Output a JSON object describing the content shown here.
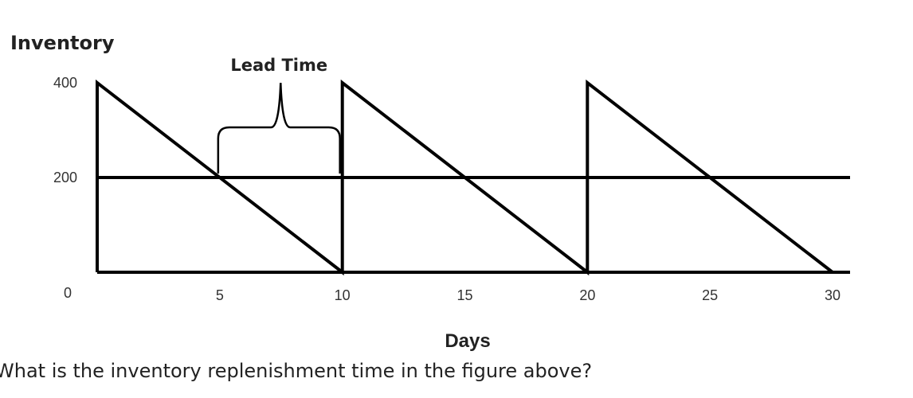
{
  "chart_data": {
    "type": "line",
    "ylabel": "Inventory",
    "xlabel": "Days",
    "x_ticks": [
      5,
      10,
      15,
      20,
      25,
      30
    ],
    "y_ticks": [
      400,
      200,
      0
    ],
    "xlim": [
      0,
      30
    ],
    "ylim": [
      0,
      400
    ],
    "grid": false,
    "series": [
      {
        "x": [
          0,
          0,
          10,
          10,
          20,
          20,
          30
        ],
        "y": [
          0,
          400,
          0,
          400,
          0,
          400,
          0
        ]
      }
    ],
    "reorder_level": 200,
    "annotations": [
      {
        "label": "Lead Time",
        "x_start": 5,
        "x_end": 10
      }
    ]
  },
  "question": "What is the inventory replenishment time in the figure above?"
}
